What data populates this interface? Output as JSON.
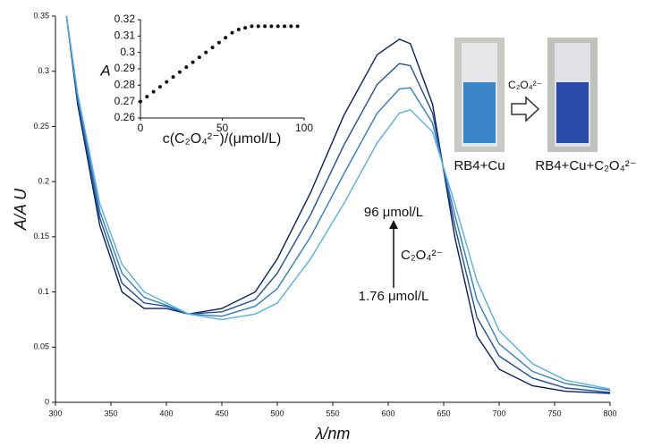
{
  "chart_data": [
    {
      "type": "line",
      "xlabel": "λ/nm",
      "ylabel": "A/A U",
      "x": [
        310,
        320,
        340,
        360,
        380,
        400,
        420,
        450,
        480,
        500,
        530,
        560,
        590,
        610,
        620,
        640,
        660,
        680,
        700,
        730,
        760,
        800
      ],
      "series": [
        {
          "color": "#0b1f5c",
          "values": [
            0.35,
            0.27,
            0.16,
            0.1,
            0.085,
            0.085,
            0.08,
            0.085,
            0.1,
            0.13,
            0.19,
            0.26,
            0.315,
            0.329,
            0.325,
            0.27,
            0.15,
            0.06,
            0.03,
            0.015,
            0.01,
            0.008
          ]
        },
        {
          "color": "#1f4f9a",
          "values": [
            0.35,
            0.273,
            0.167,
            0.108,
            0.09,
            0.087,
            0.08,
            0.082,
            0.093,
            0.117,
            0.17,
            0.233,
            0.288,
            0.307,
            0.305,
            0.262,
            0.16,
            0.077,
            0.042,
            0.022,
            0.013,
            0.009
          ]
        },
        {
          "color": "#2f7fc4",
          "values": [
            0.35,
            0.277,
            0.173,
            0.117,
            0.095,
            0.088,
            0.08,
            0.078,
            0.087,
            0.103,
            0.15,
            0.207,
            0.262,
            0.284,
            0.285,
            0.253,
            0.17,
            0.093,
            0.053,
            0.028,
            0.017,
            0.011
          ]
        },
        {
          "color": "#5ab0e0",
          "values": [
            0.35,
            0.28,
            0.18,
            0.125,
            0.1,
            0.09,
            0.08,
            0.075,
            0.08,
            0.09,
            0.13,
            0.18,
            0.235,
            0.262,
            0.265,
            0.245,
            0.18,
            0.11,
            0.065,
            0.035,
            0.02,
            0.012
          ]
        }
      ],
      "xlim": [
        300,
        800
      ],
      "ylim": [
        0,
        0.35
      ],
      "xticks": [
        300,
        350,
        400,
        450,
        500,
        550,
        600,
        650,
        700,
        750,
        800
      ],
      "yticks": [
        0,
        0.05,
        0.1,
        0.15,
        0.2,
        0.25,
        0.3,
        0.35
      ],
      "annotations": [
        "96 μmol/L",
        "C₂O₄²⁻",
        "1.76 μmol/L"
      ],
      "image_labels": [
        "RB4+Cu",
        "C₂O₄²⁻",
        "RB4+Cu+C₂O₄²⁻"
      ]
    },
    {
      "type": "scatter",
      "xlabel": "c(C₂O₄²⁻)/(μmol/L)",
      "ylabel": "A",
      "x": [
        0,
        4,
        8,
        12,
        16,
        20,
        24,
        28,
        32,
        36,
        40,
        44,
        48,
        52,
        56,
        60,
        64,
        68,
        72,
        76,
        80,
        84,
        88,
        92,
        96
      ],
      "values": [
        0.27,
        0.273,
        0.276,
        0.279,
        0.282,
        0.285,
        0.288,
        0.291,
        0.294,
        0.297,
        0.3,
        0.303,
        0.306,
        0.309,
        0.312,
        0.314,
        0.315,
        0.316,
        0.316,
        0.316,
        0.316,
        0.316,
        0.316,
        0.316,
        0.316
      ],
      "color": "#111111",
      "xlim": [
        0,
        100
      ],
      "ylim": [
        0.26,
        0.32
      ],
      "xticks": [
        0,
        50,
        100
      ],
      "yticks": [
        0.26,
        0.27,
        0.28,
        0.29,
        0.3,
        0.31,
        0.32
      ]
    }
  ]
}
